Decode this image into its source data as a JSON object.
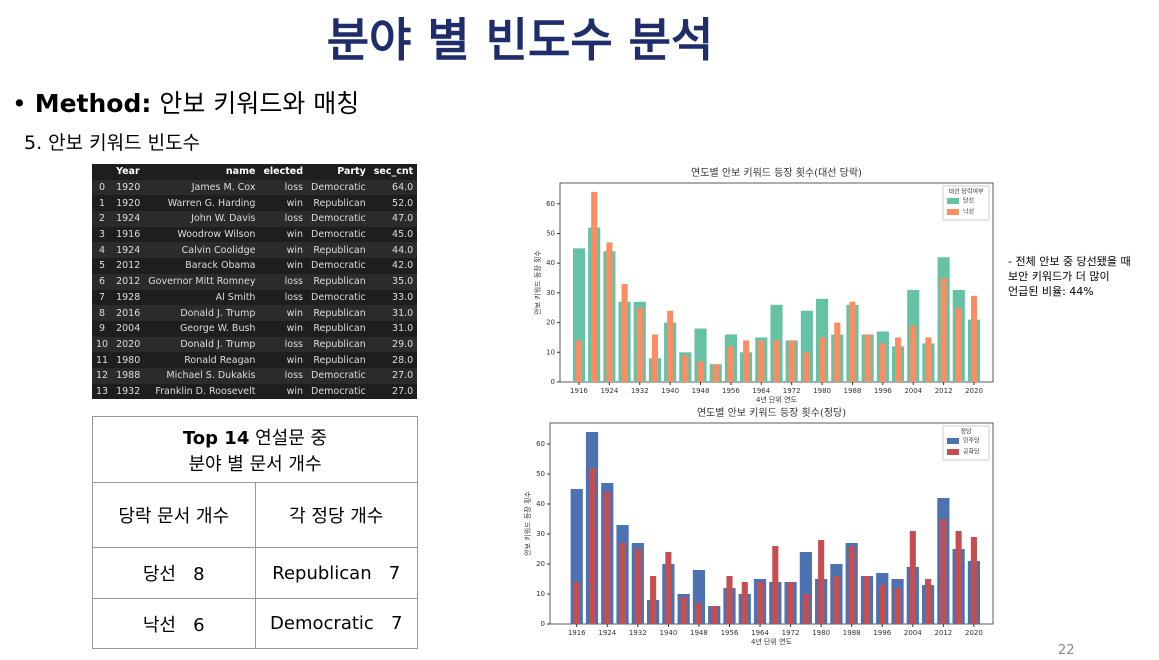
{
  "header": {
    "title": "분야 별 빈도수 분석",
    "bullet_label": "Method:",
    "bullet_text": "안보 키워드와 매칭",
    "subheading": "5. 안보 키워드 빈도수"
  },
  "table": {
    "columns": [
      "Year",
      "name",
      "elected",
      "Party",
      "sec_cnt"
    ],
    "rows": [
      [
        "0",
        "1920",
        "James M. Cox",
        "loss",
        "Democratic",
        "64.0"
      ],
      [
        "1",
        "1920",
        "Warren G. Harding",
        "win",
        "Republican",
        "52.0"
      ],
      [
        "2",
        "1924",
        "John W. Davis",
        "loss",
        "Democratic",
        "47.0"
      ],
      [
        "3",
        "1916",
        "Woodrow Wilson",
        "win",
        "Democratic",
        "45.0"
      ],
      [
        "4",
        "1924",
        "Calvin Coolidge",
        "win",
        "Republican",
        "44.0"
      ],
      [
        "5",
        "2012",
        "Barack Obama",
        "win",
        "Democratic",
        "42.0"
      ],
      [
        "6",
        "2012",
        "Governor Mitt Romney",
        "loss",
        "Republican",
        "35.0"
      ],
      [
        "7",
        "1928",
        "Al Smith",
        "loss",
        "Democratic",
        "33.0"
      ],
      [
        "8",
        "2016",
        "Donald J. Trump",
        "win",
        "Republican",
        "31.0"
      ],
      [
        "9",
        "2004",
        "George W. Bush",
        "win",
        "Republican",
        "31.0"
      ],
      [
        "10",
        "2020",
        "Donald J. Trump",
        "loss",
        "Republican",
        "29.0"
      ],
      [
        "11",
        "1980",
        "Ronald Reagan",
        "win",
        "Republican",
        "28.0"
      ],
      [
        "12",
        "1988",
        "Michael S. Dukakis",
        "loss",
        "Democratic",
        "27.0"
      ],
      [
        "13",
        "1932",
        "Franklin D. Roosevelt",
        "win",
        "Democratic",
        "27.0"
      ]
    ]
  },
  "summary": {
    "title_bold": "Top 14",
    "title_line1": "연설문 중",
    "title_line2": "분야 별 문서 개수",
    "headers": [
      "당락 문서 개수",
      "각 정당 개수"
    ],
    "rows": [
      [
        "당선",
        "8",
        "Republican",
        "7"
      ],
      [
        "낙선",
        "6",
        "Democratic",
        "7"
      ]
    ]
  },
  "note": [
    "- 전체 안보 중 당선됐을 때",
    "보안 키워드가 더 많이",
    "언급된 비율: 44%"
  ],
  "page_number": "22",
  "chart_data": [
    {
      "type": "bar",
      "title": "연도별 안보 키워드 등장 횟수(대선 당락)",
      "xlabel": "4년 단위 연도",
      "ylabel": "안보 키워드 등장 횟수",
      "x": [
        1916,
        1920,
        1924,
        1928,
        1932,
        1936,
        1940,
        1944,
        1948,
        1952,
        1956,
        1960,
        1964,
        1968,
        1972,
        1976,
        1980,
        1984,
        1988,
        1992,
        1996,
        2000,
        2004,
        2008,
        2012,
        2016,
        2020
      ],
      "xlim": [
        1911,
        2025
      ],
      "xticks": [
        1916,
        1924,
        1932,
        1940,
        1948,
        1956,
        1964,
        1972,
        1980,
        1988,
        1996,
        2004,
        2012,
        2020
      ],
      "ylim": [
        0,
        67
      ],
      "yticks": [
        0,
        10,
        20,
        30,
        40,
        50,
        60
      ],
      "legend_title": "대선 당락여부",
      "legend": "upper right",
      "series": [
        {
          "name": "당선",
          "color": "#66c2a5",
          "values": [
            45,
            52,
            44,
            27,
            27,
            8,
            20,
            10,
            18,
            6,
            16,
            10,
            15,
            26,
            14,
            24,
            28,
            16,
            26,
            16,
            17,
            12,
            31,
            13,
            42,
            31,
            21
          ]
        },
        {
          "name": "낙선",
          "color": "#fc8d62",
          "values": [
            14,
            64,
            47,
            33,
            25,
            16,
            24,
            9,
            7,
            6,
            12,
            14,
            14,
            14,
            14,
            10,
            15,
            20,
            27,
            16,
            13,
            15,
            19,
            15,
            35,
            25,
            29
          ]
        }
      ]
    },
    {
      "type": "bar",
      "title": "연도별 안보 키워드 등장 횟수(정당)",
      "xlabel": "4년 단위 연도",
      "ylabel": "안보 키워드 등장 횟수",
      "x": [
        1916,
        1920,
        1924,
        1928,
        1932,
        1936,
        1940,
        1944,
        1948,
        1952,
        1956,
        1960,
        1964,
        1968,
        1972,
        1976,
        1980,
        1984,
        1988,
        1992,
        1996,
        2000,
        2004,
        2008,
        2012,
        2016,
        2020
      ],
      "xlim": [
        1909,
        2025
      ],
      "xticks": [
        1916,
        1924,
        1932,
        1940,
        1948,
        1956,
        1964,
        1972,
        1980,
        1988,
        1996,
        2004,
        2012,
        2020
      ],
      "ylim": [
        0,
        67
      ],
      "yticks": [
        0,
        10,
        20,
        30,
        40,
        50,
        60
      ],
      "legend_title": "정당",
      "legend": "upper right",
      "series": [
        {
          "name": "민주당",
          "color": "#4c72b0",
          "values": [
            45,
            64,
            47,
            33,
            27,
            8,
            20,
            10,
            18,
            6,
            12,
            10,
            15,
            14,
            14,
            24,
            15,
            20,
            27,
            16,
            17,
            15,
            19,
            13,
            42,
            25,
            21
          ]
        },
        {
          "name": "공화당",
          "color": "#c44e52",
          "values": [
            14,
            52,
            44,
            27,
            25,
            16,
            24,
            9,
            7,
            6,
            16,
            14,
            14,
            26,
            14,
            10,
            28,
            16,
            26,
            16,
            13,
            12,
            31,
            15,
            35,
            31,
            29
          ]
        }
      ]
    }
  ]
}
